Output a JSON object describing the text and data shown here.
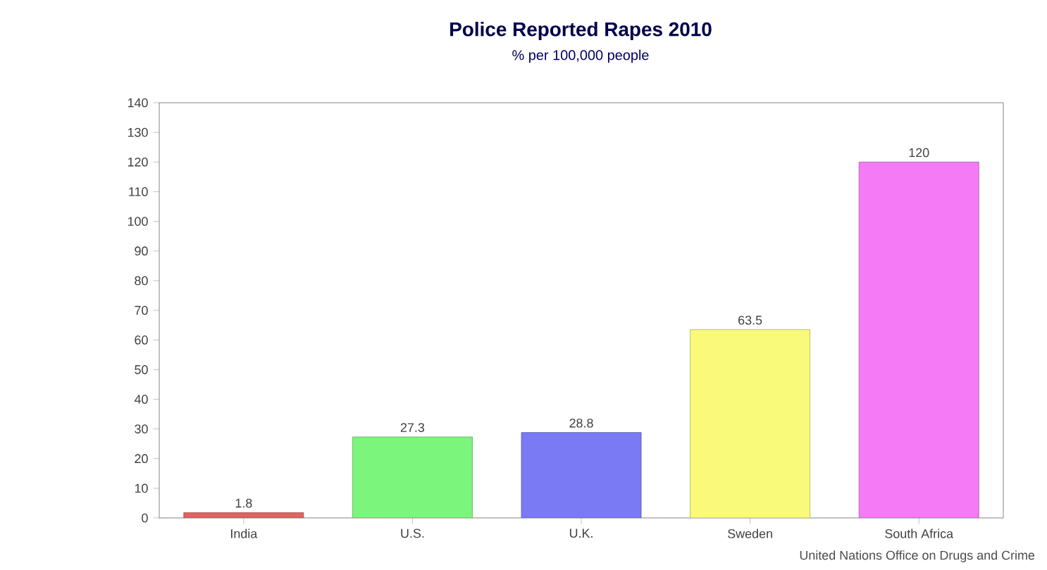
{
  "chart_data": {
    "type": "bar",
    "title": "Police Reported Rapes 2010",
    "subtitle": "% per 100,000 people",
    "categories": [
      "India",
      "U.S.",
      "U.K.",
      "Sweden",
      "South Africa"
    ],
    "values": [
      1.8,
      27.3,
      28.8,
      63.5,
      120
    ],
    "colors": [
      "#e86060",
      "#7cf57c",
      "#7a7af5",
      "#fafa7a",
      "#f57af5"
    ],
    "ylim": [
      0,
      140
    ],
    "yticks": [
      0,
      10,
      20,
      30,
      40,
      50,
      60,
      70,
      80,
      90,
      100,
      110,
      120,
      130,
      140
    ],
    "data_labels": true,
    "annotations": [
      "United Nations Office on Drugs and Crime"
    ]
  }
}
